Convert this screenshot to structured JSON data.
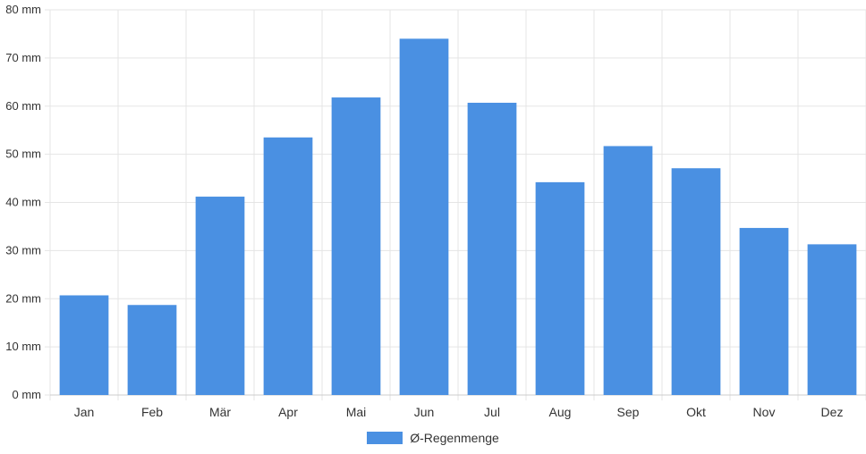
{
  "chart_data": {
    "type": "bar",
    "categories": [
      "Jan",
      "Feb",
      "Mär",
      "Apr",
      "Mai",
      "Jun",
      "Jul",
      "Aug",
      "Sep",
      "Okt",
      "Nov",
      "Dez"
    ],
    "series": [
      {
        "name": "Ø-Regenmenge",
        "values": [
          20.7,
          18.7,
          41.2,
          53.5,
          61.8,
          74.0,
          60.7,
          44.2,
          51.7,
          47.1,
          34.7,
          31.3
        ]
      }
    ],
    "y_ticks": [
      "0 mm",
      "10 mm",
      "20 mm",
      "30 mm",
      "40 mm",
      "50 mm",
      "60 mm",
      "70 mm",
      "80 mm"
    ],
    "ylim": [
      0,
      80
    ],
    "grid": true,
    "legend_position": "bottom",
    "colors": {
      "bar": "#4a90e2",
      "grid": "#e5e5e5",
      "axis": "#cccccc"
    }
  }
}
